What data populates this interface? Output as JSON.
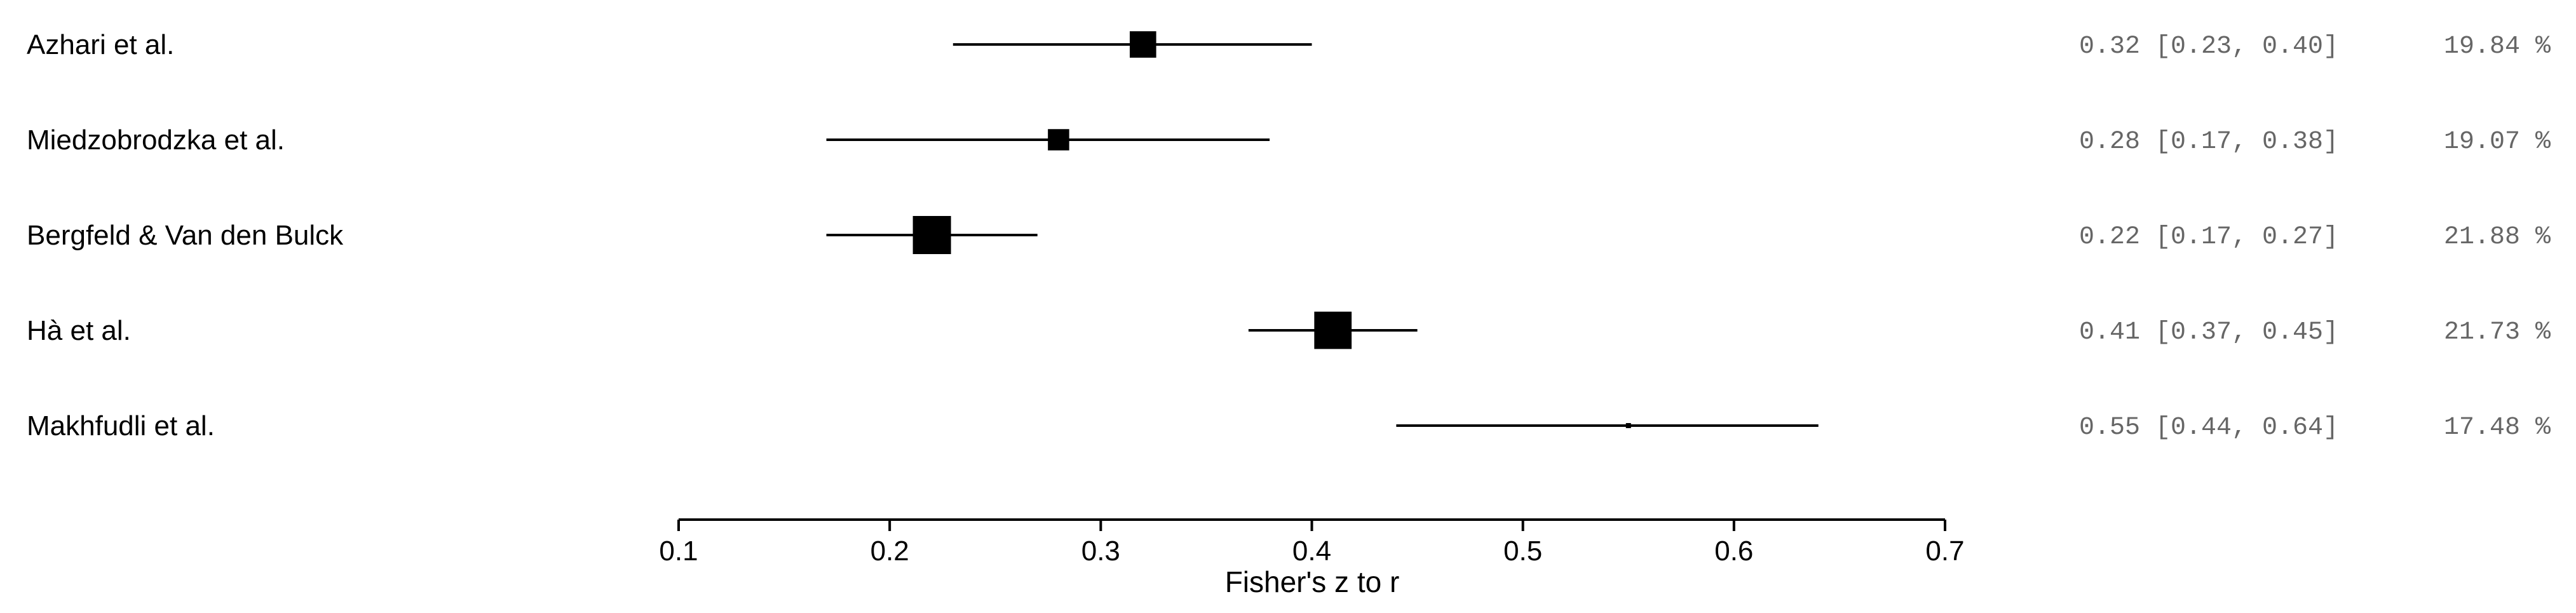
{
  "chart_data": {
    "type": "forest",
    "xlabel": "Fisher's z to r",
    "xlim": [
      0.1,
      0.7
    ],
    "xticks": [
      0.1,
      0.2,
      0.3,
      0.4,
      0.5,
      0.6,
      0.7
    ],
    "xtick_labels": [
      "0.1",
      "0.2",
      "0.3",
      "0.4",
      "0.5",
      "0.6",
      "0.7"
    ],
    "studies": [
      {
        "label": "Azhari et al.",
        "estimate": 0.32,
        "ci_low": 0.23,
        "ci_high": 0.4,
        "ci_text": "0.32 [0.23, 0.40]",
        "weight": 19.84,
        "weight_text": "19.84 %"
      },
      {
        "label": "Miedzobrodzka et al.",
        "estimate": 0.28,
        "ci_low": 0.17,
        "ci_high": 0.38,
        "ci_text": "0.28 [0.17, 0.38]",
        "weight": 19.07,
        "weight_text": "19.07 %"
      },
      {
        "label": "Bergfeld & Van den Bulck",
        "estimate": 0.22,
        "ci_low": 0.17,
        "ci_high": 0.27,
        "ci_text": "0.22 [0.17, 0.27]",
        "weight": 21.88,
        "weight_text": "21.88 %"
      },
      {
        "label": "Hà et al.",
        "estimate": 0.41,
        "ci_low": 0.37,
        "ci_high": 0.45,
        "ci_text": "0.41 [0.37, 0.45]",
        "weight": 21.73,
        "weight_text": "21.73 %"
      },
      {
        "label": "Makhfudli et al.",
        "estimate": 0.55,
        "ci_low": 0.44,
        "ci_high": 0.64,
        "ci_text": "0.55 [0.44, 0.64]",
        "weight": 17.48,
        "weight_text": "17.48 %"
      }
    ]
  }
}
